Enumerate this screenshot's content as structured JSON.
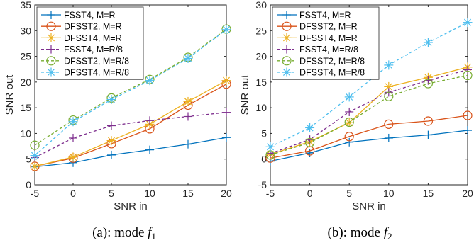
{
  "chart_data": [
    {
      "type": "line",
      "caption": "(a): mode",
      "caption_symbol": "f",
      "caption_subscript": "1",
      "xlabel": "SNR in",
      "ylabel": "SNR out",
      "xlim": [
        -5,
        20
      ],
      "ylim": [
        0,
        35
      ],
      "xticks": [
        "-5",
        "0",
        "5",
        "10",
        "15",
        "20"
      ],
      "yticks": [
        "0",
        "5",
        "10",
        "15",
        "20",
        "25",
        "30",
        "35"
      ],
      "grid": false,
      "legend_position": "top-left",
      "x": [
        -5,
        0,
        5,
        10,
        15,
        20
      ],
      "series": [
        {
          "name": "FSST4, M=R",
          "color": "#0072BD",
          "marker": "plus",
          "dashed": false,
          "values": [
            3.5,
            4.3,
            5.8,
            6.8,
            7.9,
            9.2
          ]
        },
        {
          "name": "DFSST2, M=R",
          "color": "#D95319",
          "marker": "circle",
          "dashed": false,
          "values": [
            3.6,
            5.2,
            8.0,
            10.9,
            15.5,
            19.6
          ]
        },
        {
          "name": "DFSST4, M=R",
          "color": "#EDB120",
          "marker": "asterisk",
          "dashed": false,
          "values": [
            3.6,
            5.4,
            8.6,
            11.8,
            16.2,
            20.3
          ]
        },
        {
          "name": "FSST4, M=R/8",
          "color": "#7E2F8E",
          "marker": "plus",
          "dashed": true,
          "values": [
            5.3,
            9.1,
            11.5,
            12.5,
            13.3,
            14.1
          ]
        },
        {
          "name": "DFSST2, M=R/8",
          "color": "#77AC30",
          "marker": "circle",
          "dashed": true,
          "values": [
            7.7,
            12.6,
            16.9,
            20.5,
            24.8,
            30.3
          ]
        },
        {
          "name": "DFSST4, M=R/8",
          "color": "#4DBEEE",
          "marker": "asterisk",
          "dashed": true,
          "values": [
            5.7,
            12.3,
            16.6,
            20.3,
            24.6,
            30.2
          ]
        }
      ]
    },
    {
      "type": "line",
      "caption": "(b): mode",
      "caption_symbol": "f",
      "caption_subscript": "2",
      "xlabel": "SNR in",
      "ylabel": "SNR out",
      "xlim": [
        -5,
        20
      ],
      "ylim": [
        -5,
        30
      ],
      "xticks": [
        "-5",
        "0",
        "5",
        "10",
        "15",
        "20"
      ],
      "yticks": [
        "-5",
        "0",
        "5",
        "10",
        "15",
        "20",
        "25",
        "30"
      ],
      "grid": false,
      "legend_position": "top-left",
      "x": [
        -5,
        0,
        5,
        10,
        15,
        20
      ],
      "series": [
        {
          "name": "FSST4, M=R",
          "color": "#0072BD",
          "marker": "plus",
          "dashed": false,
          "values": [
            -0.4,
            1.2,
            3.3,
            4.1,
            4.7,
            5.6
          ]
        },
        {
          "name": "DFSST2, M=R",
          "color": "#D95319",
          "marker": "circle",
          "dashed": false,
          "values": [
            0.2,
            1.6,
            4.4,
            6.8,
            7.4,
            8.5
          ]
        },
        {
          "name": "DFSST4, M=R",
          "color": "#EDB120",
          "marker": "asterisk",
          "dashed": false,
          "values": [
            0.9,
            3.4,
            7.1,
            14.1,
            15.9,
            17.9
          ]
        },
        {
          "name": "FSST4, M=R/8",
          "color": "#7E2F8E",
          "marker": "plus",
          "dashed": true,
          "values": [
            1.1,
            3.8,
            9.2,
            13.0,
            15.3,
            17.4
          ]
        },
        {
          "name": "DFSST2, M=R/8",
          "color": "#77AC30",
          "marker": "circle",
          "dashed": true,
          "values": [
            0.8,
            3.2,
            7.2,
            12.2,
            14.7,
            16.3
          ]
        },
        {
          "name": "DFSST4, M=R/8",
          "color": "#4DBEEE",
          "marker": "asterisk",
          "dashed": true,
          "values": [
            2.4,
            6.1,
            12.1,
            18.3,
            22.7,
            26.6
          ]
        }
      ]
    }
  ]
}
